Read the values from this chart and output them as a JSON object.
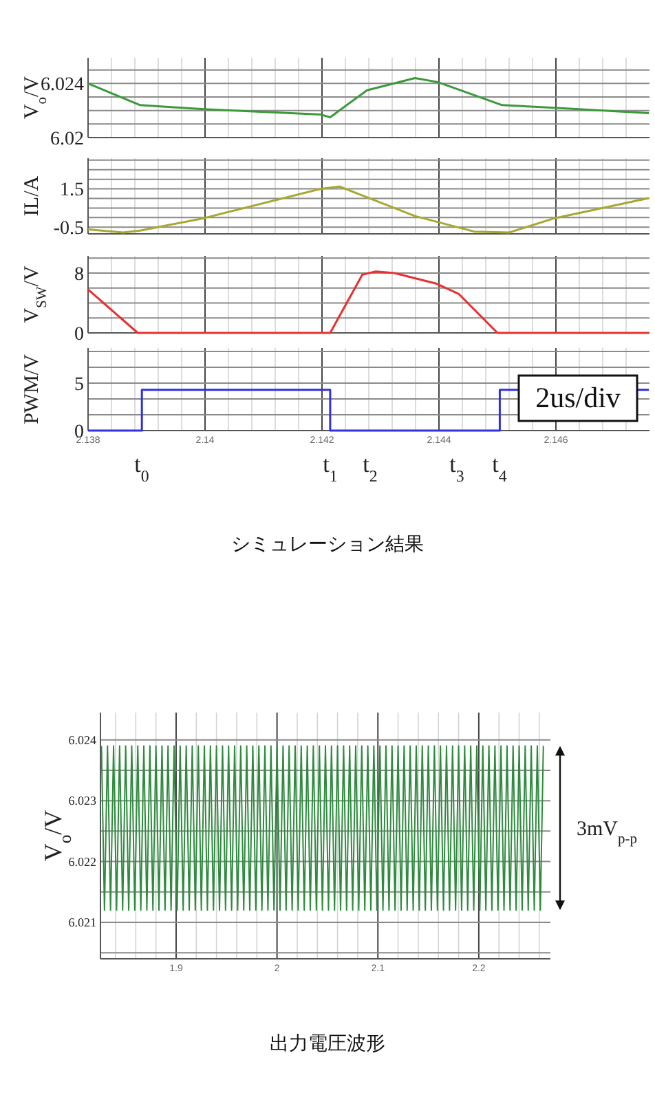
{
  "chart_data": [
    {
      "type": "line",
      "ylabel": "V$_{o}$/V",
      "xlim": [
        2.138,
        2.1476
      ],
      "ylim": [
        6.02,
        6.0259
      ],
      "tick_labels": "y",
      "grid": true,
      "xticks": [
        2.138,
        {
          "value": 2.1384,
          "label": null
        },
        {
          "value": 2.1388,
          "label": null
        },
        {
          "value": 2.1392,
          "label": null
        },
        {
          "value": 2.1396,
          "label": null
        },
        2.14,
        {
          "value": 2.1404,
          "label": null
        },
        {
          "value": 2.1408,
          "label": null
        },
        {
          "value": 2.1412,
          "label": null
        },
        {
          "value": 2.1416,
          "label": null
        },
        2.142,
        {
          "value": 2.1424,
          "label": null
        },
        {
          "value": 2.1428,
          "label": null
        },
        {
          "value": 2.1432,
          "label": null
        },
        {
          "value": 2.1436,
          "label": null
        },
        2.144,
        {
          "value": 2.1444,
          "label": null
        },
        {
          "value": 2.1448,
          "label": null
        },
        {
          "value": 2.1452,
          "label": null
        },
        {
          "value": 2.1456,
          "label": null
        },
        2.146,
        {
          "value": 2.1464,
          "label": null
        },
        {
          "value": 2.1468,
          "label": null
        },
        {
          "value": 2.1472,
          "label": null
        }
      ],
      "yticks": [
        6.02,
        {
          "value": 6.021,
          "label": null
        },
        {
          "value": 6.022,
          "label": null
        },
        {
          "value": 6.023,
          "label": null
        },
        6.024,
        {
          "value": 6.025,
          "label": null
        }
      ],
      "series": [
        {
          "color": "#3a9a3a",
          "x": [
            2.138,
            2.13889,
            2.13998,
            2.14198,
            2.14214,
            2.14277,
            2.14359,
            2.14398,
            2.14508,
            2.14598,
            2.14759
          ],
          "values": [
            6.024,
            6.0224,
            6.0221,
            6.0217,
            6.0215,
            6.0235,
            6.0244,
            6.0241,
            6.0224,
            6.0222,
            6.0218
          ]
        }
      ]
    },
    {
      "type": "line",
      "ylabel": "IL/A",
      "xlim": [
        2.138,
        2.1476
      ],
      "ylim": [
        -0.85,
        3.1
      ],
      "tick_labels": "y",
      "grid": true,
      "xticks": [
        2.138,
        {
          "value": 2.1384,
          "label": null
        },
        {
          "value": 2.1388,
          "label": null
        },
        {
          "value": 2.1392,
          "label": null
        },
        {
          "value": 2.1396,
          "label": null
        },
        2.14,
        {
          "value": 2.1404,
          "label": null
        },
        {
          "value": 2.1408,
          "label": null
        },
        {
          "value": 2.1412,
          "label": null
        },
        {
          "value": 2.1416,
          "label": null
        },
        2.142,
        {
          "value": 2.1424,
          "label": null
        },
        {
          "value": 2.1428,
          "label": null
        },
        {
          "value": 2.1432,
          "label": null
        },
        {
          "value": 2.1436,
          "label": null
        },
        2.144,
        {
          "value": 2.1444,
          "label": null
        },
        {
          "value": 2.1448,
          "label": null
        },
        {
          "value": 2.1452,
          "label": null
        },
        {
          "value": 2.1456,
          "label": null
        },
        2.146,
        {
          "value": 2.1464,
          "label": null
        },
        {
          "value": 2.1468,
          "label": null
        },
        {
          "value": 2.1472,
          "label": null
        }
      ],
      "yticks": [
        -0.5,
        {
          "value": 0,
          "label": null
        },
        {
          "value": 0.5,
          "label": null
        },
        {
          "value": 1,
          "label": null
        },
        1.5,
        {
          "value": 2,
          "label": null
        },
        {
          "value": 2.5,
          "label": null
        },
        {
          "value": 3,
          "label": null
        }
      ],
      "series": [
        {
          "color": "#a8a830",
          "x": [
            2.138,
            2.1386,
            2.13889,
            2.13998,
            2.14198,
            2.1423,
            2.14359,
            2.1446,
            2.1452,
            2.14598,
            2.14759
          ],
          "values": [
            -0.62,
            -0.78,
            -0.68,
            -0.03,
            1.5,
            1.62,
            0.08,
            -0.73,
            -0.78,
            -0.03,
            1.02
          ]
        }
      ]
    },
    {
      "type": "line",
      "ylabel": "V$_{SW}$/V",
      "xlim": [
        2.138,
        2.1476
      ],
      "ylim": [
        0,
        10.3
      ],
      "tick_labels": "y",
      "grid": true,
      "xticks": [
        2.138,
        {
          "value": 2.1384,
          "label": null
        },
        {
          "value": 2.1388,
          "label": null
        },
        {
          "value": 2.1392,
          "label": null
        },
        {
          "value": 2.1396,
          "label": null
        },
        2.14,
        {
          "value": 2.1404,
          "label": null
        },
        {
          "value": 2.1408,
          "label": null
        },
        {
          "value": 2.1412,
          "label": null
        },
        {
          "value": 2.1416,
          "label": null
        },
        2.142,
        {
          "value": 2.1424,
          "label": null
        },
        {
          "value": 2.1428,
          "label": null
        },
        {
          "value": 2.1432,
          "label": null
        },
        {
          "value": 2.1436,
          "label": null
        },
        2.144,
        {
          "value": 2.1444,
          "label": null
        },
        {
          "value": 2.1448,
          "label": null
        },
        {
          "value": 2.1452,
          "label": null
        },
        {
          "value": 2.1456,
          "label": null
        },
        2.146,
        {
          "value": 2.1464,
          "label": null
        },
        {
          "value": 2.1468,
          "label": null
        },
        {
          "value": 2.1472,
          "label": null
        }
      ],
      "yticks": [
        0,
        {
          "value": 2,
          "label": null
        },
        {
          "value": 4,
          "label": null
        },
        {
          "value": 6,
          "label": null
        },
        8,
        {
          "value": 10,
          "label": null
        }
      ],
      "series": [
        {
          "color": "#e83030",
          "x": [
            2.138,
            2.13885,
            2.14214,
            2.14269,
            2.14292,
            2.14324,
            2.14395,
            2.14434,
            2.145,
            2.14759
          ],
          "values": [
            5.8,
            0,
            0,
            7.8,
            8.2,
            8,
            6.6,
            5.2,
            0,
            0
          ]
        }
      ]
    },
    {
      "type": "step",
      "title": "シミュレーション結果",
      "ylabel": "PWM/V",
      "xlim": [
        2.138,
        2.1476
      ],
      "ylim": [
        0,
        8.7
      ],
      "grid": true,
      "xticks": [
        2.138,
        {
          "value": 2.1384,
          "label": null
        },
        {
          "value": 2.1388,
          "label": null
        },
        {
          "value": 2.1392,
          "label": null
        },
        {
          "value": 2.1396,
          "label": null
        },
        2.14,
        {
          "value": 2.1404,
          "label": null
        },
        {
          "value": 2.1408,
          "label": null
        },
        {
          "value": 2.1412,
          "label": null
        },
        {
          "value": 2.1416,
          "label": null
        },
        2.142,
        {
          "value": 2.1424,
          "label": null
        },
        {
          "value": 2.1428,
          "label": null
        },
        {
          "value": 2.1432,
          "label": null
        },
        {
          "value": 2.1436,
          "label": null
        },
        2.144,
        {
          "value": 2.1444,
          "label": null
        },
        {
          "value": 2.1448,
          "label": null
        },
        {
          "value": 2.1452,
          "label": null
        },
        {
          "value": 2.1456,
          "label": null
        },
        2.146,
        {
          "value": 2.1464,
          "label": null
        },
        {
          "value": 2.1468,
          "label": null
        },
        {
          "value": 2.1472,
          "label": null
        }
      ],
      "yticks": [
        0,
        {
          "value": 1.667,
          "label": null
        },
        {
          "value": 3.333,
          "label": null
        },
        5,
        {
          "value": 6.667,
          "label": null
        },
        {
          "value": 8.333,
          "label": null
        }
      ],
      "annotations": [
        "2us/div",
        "t$_{0}$",
        "t$_{1}$",
        "t$_{2}$",
        "t$_{3}$",
        "t$_{4}$"
      ],
      "series": [
        {
          "color": "#3030e0",
          "x": [
            2.138,
            2.13892,
            2.14214,
            2.14504,
            2.14759
          ],
          "values": [
            0,
            4.3,
            0,
            4.3,
            4.3
          ]
        }
      ]
    },
    {
      "type": "line",
      "title": "出力電圧波形",
      "ylabel": "V$_{o}$/V",
      "xlim": [
        1.825,
        2.271
      ],
      "ylim": [
        6.0204,
        6.02445
      ],
      "grid": true,
      "xticks": [
        {
          "value": 1.84,
          "label": null
        },
        {
          "value": 1.86,
          "label": null
        },
        {
          "value": 1.88,
          "label": null
        },
        1.9,
        {
          "value": 1.92,
          "label": null
        },
        {
          "value": 1.94,
          "label": null
        },
        {
          "value": 1.96,
          "label": null
        },
        {
          "value": 1.98,
          "label": null
        },
        2,
        {
          "value": 2.02,
          "label": null
        },
        {
          "value": 2.04,
          "label": null
        },
        {
          "value": 2.06,
          "label": null
        },
        {
          "value": 2.08,
          "label": null
        },
        2.1,
        {
          "value": 2.12,
          "label": null
        },
        {
          "value": 2.14,
          "label": null
        },
        {
          "value": 2.16,
          "label": null
        },
        {
          "value": 2.18,
          "label": null
        },
        2.2,
        {
          "value": 2.22,
          "label": null
        },
        {
          "value": 2.24,
          "label": null
        },
        {
          "value": 2.26,
          "label": null
        }
      ],
      "yticks": [
        {
          "value": 6.0205,
          "label": null
        },
        6.021,
        {
          "value": 6.0215,
          "label": null
        },
        6.022,
        {
          "value": 6.0225,
          "label": null
        },
        6.023,
        {
          "value": 6.0235,
          "label": null
        },
        6.024
      ],
      "annotations": [
        "3mV$_{p-p}$"
      ],
      "series": [
        {
          "color": "#2e8b3e",
          "x": [
            1.826,
            1.829,
            1.832,
            1.835,
            1.838,
            1.841,
            1.844,
            1.847,
            1.85,
            1.853,
            1.856,
            1.859,
            1.862,
            1.865,
            1.868,
            1.871,
            1.874,
            1.877,
            1.88,
            1.883,
            1.886,
            1.889,
            1.892,
            1.895,
            1.898,
            1.901,
            1.904,
            1.907,
            1.91,
            1.913,
            1.916,
            1.919,
            1.922,
            1.925,
            1.928,
            1.931,
            1.934,
            1.937,
            1.94,
            1.943,
            1.946,
            1.949,
            1.952,
            1.955,
            1.958,
            1.961,
            1.964,
            1.967,
            1.97,
            1.973,
            1.976,
            1.979,
            1.982,
            1.985,
            1.988,
            1.991,
            1.994,
            1.997,
            2.0,
            2.003,
            2.006,
            2.009,
            2.012,
            2.015,
            2.018,
            2.021,
            2.024,
            2.027,
            2.03,
            2.033,
            2.036,
            2.039,
            2.042,
            2.045,
            2.048,
            2.051,
            2.054,
            2.057,
            2.06,
            2.063,
            2.066,
            2.069,
            2.072,
            2.075,
            2.078,
            2.081,
            2.084,
            2.087,
            2.09,
            2.093,
            2.096,
            2.099,
            2.102,
            2.105,
            2.108,
            2.111,
            2.114,
            2.117,
            2.12,
            2.123,
            2.126,
            2.129,
            2.132,
            2.135,
            2.138,
            2.141,
            2.144,
            2.147,
            2.15,
            2.153,
            2.156,
            2.159,
            2.162,
            2.165,
            2.168,
            2.171,
            2.174,
            2.177,
            2.18,
            2.183,
            2.186,
            2.189,
            2.192,
            2.195,
            2.198,
            2.201,
            2.204,
            2.207,
            2.21,
            2.213,
            2.216,
            2.219,
            2.222,
            2.225,
            2.228,
            2.231,
            2.234,
            2.237,
            2.24,
            2.243,
            2.246,
            2.249,
            2.252,
            2.255,
            2.258,
            2.261,
            2.264
          ],
          "values": [
            6.0239,
            6.0212,
            6.0239,
            6.0212,
            6.0239,
            6.0212,
            6.0239,
            6.0212,
            6.0239,
            6.0212,
            6.0239,
            6.0212,
            6.0239,
            6.0212,
            6.0239,
            6.0212,
            6.0239,
            6.0212,
            6.0239,
            6.0212,
            6.0239,
            6.0212,
            6.0239,
            6.0212,
            6.0239,
            6.0212,
            6.0239,
            6.0212,
            6.0239,
            6.0212,
            6.0239,
            6.0212,
            6.0239,
            6.0212,
            6.0239,
            6.0212,
            6.0239,
            6.0212,
            6.0239,
            6.0212,
            6.0239,
            6.0212,
            6.0239,
            6.0212,
            6.0239,
            6.0212,
            6.0239,
            6.0212,
            6.0239,
            6.0212,
            6.0239,
            6.0212,
            6.0239,
            6.0212,
            6.0239,
            6.0212,
            6.0239,
            6.0212,
            6.0239,
            6.0212,
            6.0239,
            6.0212,
            6.0239,
            6.0212,
            6.0239,
            6.0212,
            6.0239,
            6.0212,
            6.0239,
            6.0212,
            6.0239,
            6.0212,
            6.0239,
            6.0212,
            6.0239,
            6.0212,
            6.0239,
            6.0212,
            6.0239,
            6.0212,
            6.0239,
            6.0212,
            6.0239,
            6.0212,
            6.0239,
            6.0212,
            6.0239,
            6.0212,
            6.0239,
            6.0212,
            6.0239,
            6.0212,
            6.0239,
            6.0212,
            6.0239,
            6.0212,
            6.0239,
            6.0212,
            6.0239,
            6.0212,
            6.0239,
            6.0212,
            6.0239,
            6.0212,
            6.0239,
            6.0212,
            6.0239,
            6.0212,
            6.0239,
            6.0212,
            6.0239,
            6.0212,
            6.0239,
            6.0212,
            6.0239,
            6.0212,
            6.0239,
            6.0212,
            6.0239,
            6.0212,
            6.0239,
            6.0212,
            6.0239,
            6.0212,
            6.0239,
            6.0212,
            6.0239,
            6.0212,
            6.0239,
            6.0212,
            6.0239,
            6.0212,
            6.0239,
            6.0212,
            6.0239,
            6.0212,
            6.0239,
            6.0212,
            6.0239,
            6.0212,
            6.0239,
            6.0212,
            6.0239,
            6.0212,
            6.0239,
            6.0212,
            6.0239
          ]
        }
      ]
    }
  ]
}
